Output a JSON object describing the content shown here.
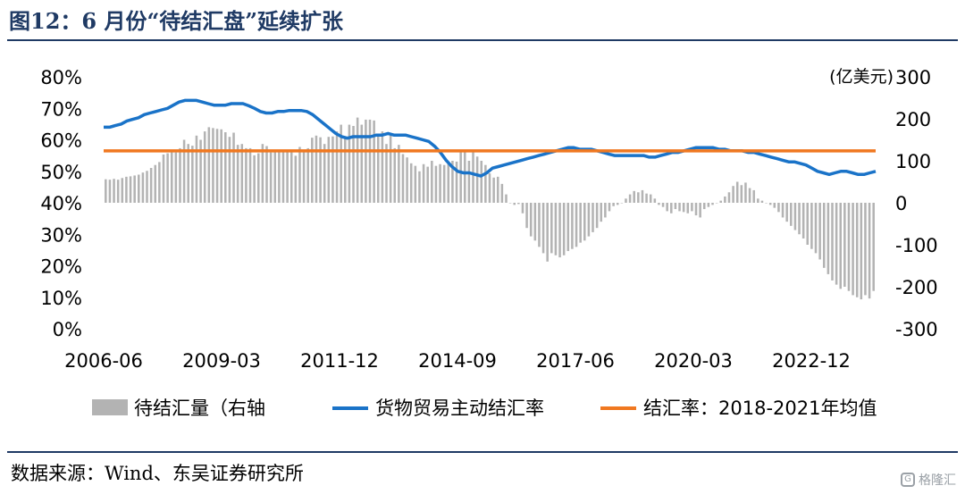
{
  "title": "图12：6 月份“待结汇盘”延续扩张",
  "source": "数据来源：Wind、东吴证券研究所",
  "watermark": "格隆汇",
  "chart_data": {
    "type": "bar+line",
    "left_axis": {
      "ticks": [
        "0%",
        "10%",
        "20%",
        "30%",
        "40%",
        "50%",
        "60%",
        "70%",
        "80%"
      ],
      "min": 0,
      "max": 80
    },
    "right_axis": {
      "unit_label": "(亿美元)",
      "ticks": [
        "-300",
        "-200",
        "-100",
        "0",
        "100",
        "200",
        "300"
      ],
      "min": -300,
      "max": 300
    },
    "x_axis": {
      "start": "2006-06",
      "end": "2024-06",
      "ticks": [
        "2006-06",
        "2009-03",
        "2011-12",
        "2014-09",
        "2017-06",
        "2020-03",
        "2022-12"
      ]
    },
    "legend": [
      "待结汇量（右轴",
      "货物贸易主动结汇率",
      "结汇率：2018-2021年均值"
    ],
    "colors": {
      "bars": "#b3b3b3",
      "line": "#1a73c8",
      "mean": "#f07820"
    },
    "mean_value": 56.5,
    "bars_right_axis": [
      56,
      55,
      57,
      55,
      59,
      62,
      63,
      65,
      67,
      72,
      76,
      83,
      90,
      97,
      115,
      118,
      122,
      120,
      130,
      150,
      140,
      136,
      160,
      150,
      170,
      180,
      178,
      176,
      175,
      168,
      157,
      167,
      138,
      140,
      130,
      130,
      113,
      118,
      140,
      135,
      120,
      125,
      123,
      125,
      124,
      126,
      112,
      133,
      125,
      130,
      155,
      160,
      156,
      140,
      157,
      158,
      170,
      186,
      157,
      186,
      183,
      203,
      186,
      198,
      198,
      196,
      163,
      170,
      140,
      160,
      130,
      138,
      116,
      108,
      94,
      88,
      75,
      92,
      86,
      100,
      88,
      92,
      90,
      96,
      100,
      98,
      125,
      122,
      100,
      125,
      110,
      100,
      90,
      70,
      60,
      62,
      45,
      20,
      0,
      -5,
      -3,
      -25,
      -60,
      -80,
      -90,
      -105,
      -120,
      -140,
      -120,
      -125,
      -130,
      -125,
      -115,
      -110,
      -105,
      -95,
      -90,
      -80,
      -70,
      -60,
      -45,
      -35,
      -20,
      -8,
      -5,
      0,
      10,
      20,
      28,
      25,
      30,
      22,
      20,
      10,
      -5,
      -10,
      -20,
      -25,
      -15,
      -20,
      -22,
      -25,
      -20,
      -30,
      -35,
      -15,
      -10,
      -5,
      0,
      5,
      15,
      25,
      40,
      50,
      42,
      48,
      35,
      30,
      10,
      5,
      0,
      -5,
      -12,
      -22,
      -35,
      -45,
      -55,
      -65,
      -75,
      -85,
      -100,
      -110,
      -120,
      -135,
      -155,
      -170,
      -185,
      -195,
      -205,
      -200,
      -210,
      -220,
      -225,
      -230,
      -220,
      -228,
      -210
    ],
    "line_left_axis": [
      64,
      64,
      64.5,
      65,
      66,
      66.5,
      67,
      68,
      68.5,
      69,
      69.5,
      70,
      71,
      72,
      72.5,
      72.5,
      72.5,
      72,
      71.5,
      71,
      71,
      71,
      71.5,
      71.5,
      71.5,
      70.8,
      70,
      69,
      68.5,
      68.5,
      69,
      69,
      69.3,
      69.3,
      69.3,
      69,
      68,
      66.5,
      65,
      63.5,
      62,
      61,
      60.5,
      61,
      61,
      61,
      61,
      61.5,
      61.5,
      62,
      61.5,
      61.5,
      61.5,
      61,
      60.5,
      60,
      59.5,
      58,
      56,
      53.5,
      51.5,
      50,
      49.5,
      49.5,
      49,
      48.5,
      49.5,
      51,
      51.5,
      52,
      52.5,
      53,
      53.5,
      54,
      54.5,
      55,
      55.5,
      56,
      56.5,
      57,
      57.5,
      57.5,
      57,
      57,
      57,
      56.5,
      56,
      55.5,
      55,
      55,
      55,
      55,
      55,
      55,
      54.5,
      54.5,
      55,
      55.5,
      56,
      56,
      56.5,
      57,
      57.5,
      57.5,
      57.5,
      57.5,
      57,
      57,
      56.5,
      56.5,
      56.5,
      56,
      56,
      55.5,
      55,
      54.5,
      54,
      53.5,
      53,
      53,
      52.5,
      52,
      51,
      50,
      49.5,
      49,
      49.5,
      50,
      50,
      49.5,
      49,
      49,
      49.5,
      50
    ]
  }
}
